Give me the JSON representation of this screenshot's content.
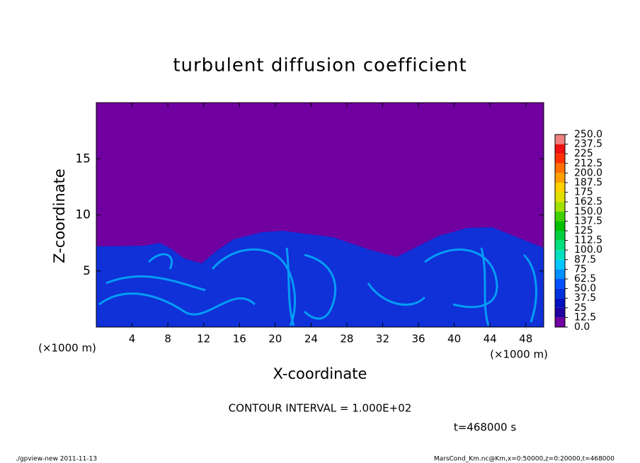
{
  "chart_data": {
    "type": "contour",
    "title": "turbulent diffusion coefficient",
    "x_label": "X-coordinate",
    "y_label": "Z-coordinate",
    "x_unit": "(×1000 m)",
    "x_unit_right": "(×1000 m)",
    "xlim": [
      0,
      50
    ],
    "xticks": [
      4,
      8,
      12,
      16,
      20,
      24,
      28,
      32,
      36,
      40,
      44,
      48
    ],
    "ylim": [
      0,
      20
    ],
    "yticks": [
      5,
      10,
      15
    ],
    "annotation": "CONTOUR INTERVAL = 1.000E+02",
    "time_label": "t=468000 s",
    "footer_left": "./gpview-new   2011-11-13",
    "footer_right": "MarsCond_Km.nc@Km,x=0:50000,z=0:20000,t=468000",
    "colorbar": {
      "levels": [
        {
          "value": 0,
          "label": "0.0"
        },
        12.5,
        25,
        37.5,
        {
          "value": 50,
          "label": "50.0"
        },
        62.5,
        75,
        87.5,
        {
          "value": 100,
          "label": "100.0"
        },
        112.5,
        125,
        137.5,
        {
          "value": 150,
          "label": "150.0"
        },
        162.5,
        175,
        187.5,
        {
          "value": 200,
          "label": "200.0"
        },
        212.5,
        225,
        237.5,
        {
          "value": 250,
          "label": "250.0"
        }
      ],
      "colors": [
        "#7000a0",
        "#2000a0",
        "#0010c0",
        "#0030e0",
        "#0050ff",
        "#0090ff",
        "#00c8ff",
        "#00e0c0",
        "#00e080",
        "#00d040",
        "#00c000",
        "#40d000",
        "#a0e000",
        "#e0e000",
        "#ffd000",
        "#ffa000",
        "#ff7000",
        "#ff3000",
        "#f01010",
        "#f08080"
      ]
    }
  }
}
